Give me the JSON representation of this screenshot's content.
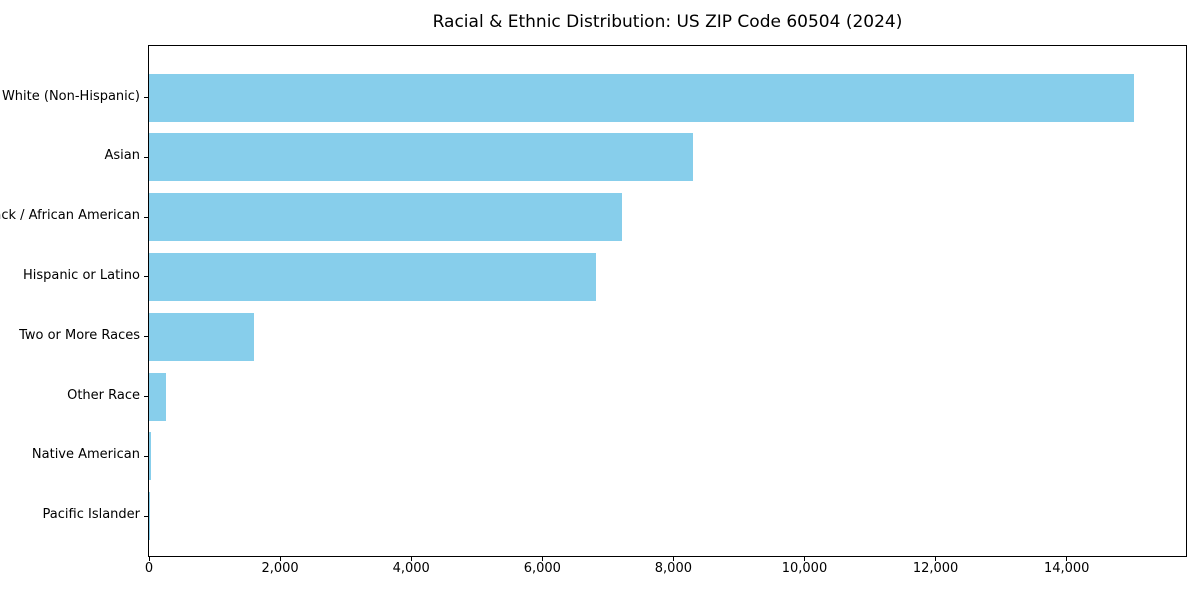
{
  "chart_data": {
    "type": "bar",
    "orientation": "horizontal",
    "title": "Racial & Ethnic Distribution: US ZIP Code 60504 (2024)",
    "categories": [
      "White (Non-Hispanic)",
      "Asian",
      "Black / African American",
      "Hispanic or Latino",
      "Two or More Races",
      "Other Race",
      "Native American",
      "Pacific Islander"
    ],
    "values": [
      15030,
      8300,
      7210,
      6820,
      1600,
      260,
      30,
      15
    ],
    "xlabel": "",
    "ylabel": "",
    "xlim": [
      0,
      15820
    ],
    "x_ticks": [
      0,
      2000,
      4000,
      6000,
      8000,
      10000,
      12000,
      14000
    ],
    "x_tick_labels": [
      "0",
      "2,000",
      "4,000",
      "6,000",
      "8,000",
      "10,000",
      "12,000",
      "14,000"
    ],
    "bar_color": "#87CEEB",
    "background_color": "#FFFFFF",
    "axis_color": "#000000",
    "grid": false,
    "legend": null
  }
}
